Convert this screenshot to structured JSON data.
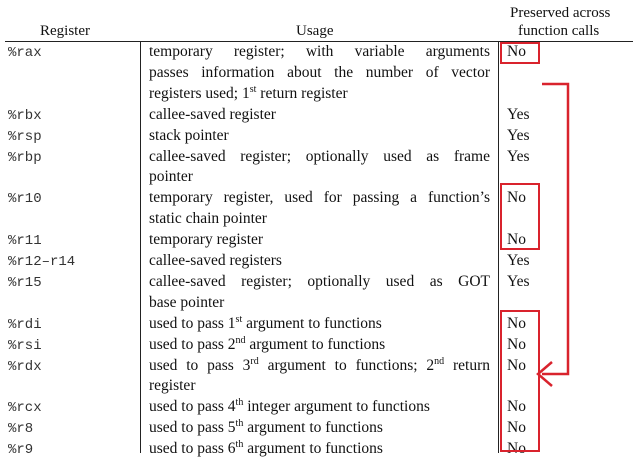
{
  "header": {
    "register": "Register",
    "usage": "Usage",
    "preserved_line1": "Preserved across",
    "preserved_line2": "function calls"
  },
  "rows": [
    {
      "register": "%rax",
      "usage_lines": [
        {
          "parts": [
            {
              "t": "temporary register;  with  variable  arguments"
            }
          ],
          "justify": true
        },
        {
          "parts": [
            {
              "t": "passes information about the number of vector"
            }
          ],
          "justify": true
        },
        {
          "parts": [
            {
              "t": "registers used; 1"
            },
            {
              "sup": "st"
            },
            {
              "t": " return register"
            }
          ]
        }
      ],
      "preserved": "No"
    },
    {
      "register": "%rbx",
      "usage_lines": [
        {
          "parts": [
            {
              "t": "callee-saved register"
            }
          ]
        }
      ],
      "preserved": "Yes"
    },
    {
      "register": "%rsp",
      "usage_lines": [
        {
          "parts": [
            {
              "t": "stack pointer"
            }
          ]
        }
      ],
      "preserved": "Yes"
    },
    {
      "register": "%rbp",
      "usage_lines": [
        {
          "parts": [
            {
              "t": "callee-saved register;  optionally used as frame"
            }
          ],
          "justify": true
        },
        {
          "parts": [
            {
              "t": "pointer"
            }
          ]
        }
      ],
      "preserved": "Yes"
    },
    {
      "register": "%r10",
      "usage_lines": [
        {
          "parts": [
            {
              "t": "temporary register, used for passing a function’s"
            }
          ],
          "justify": true
        },
        {
          "parts": [
            {
              "t": "static chain pointer"
            }
          ]
        }
      ],
      "preserved": "No"
    },
    {
      "register": "%r11",
      "usage_lines": [
        {
          "parts": [
            {
              "t": "temporary register"
            }
          ]
        }
      ],
      "preserved": "No"
    },
    {
      "register": "%r12–r14",
      "usage_lines": [
        {
          "parts": [
            {
              "t": "callee-saved registers"
            }
          ]
        }
      ],
      "preserved": "Yes"
    },
    {
      "register": "%r15",
      "usage_lines": [
        {
          "parts": [
            {
              "t": "callee-saved register;  optionally used as GOT"
            }
          ],
          "justify": true
        },
        {
          "parts": [
            {
              "t": "base pointer"
            }
          ]
        }
      ],
      "preserved": "Yes"
    },
    {
      "register": "%rdi",
      "usage_lines": [
        {
          "parts": [
            {
              "t": "used to pass 1"
            },
            {
              "sup": "st"
            },
            {
              "t": " argument to functions"
            }
          ]
        }
      ],
      "preserved": "No"
    },
    {
      "register": "%rsi",
      "usage_lines": [
        {
          "parts": [
            {
              "t": "used to pass 2"
            },
            {
              "sup": "nd"
            },
            {
              "t": " argument to functions"
            }
          ]
        }
      ],
      "preserved": "No"
    },
    {
      "register": "%rdx",
      "usage_lines": [
        {
          "parts": [
            {
              "t": "used to pass 3"
            },
            {
              "sup": "rd"
            },
            {
              "t": " argument to functions; 2"
            },
            {
              "sup": "nd"
            },
            {
              "t": " return"
            }
          ],
          "justify": true
        },
        {
          "parts": [
            {
              "t": "register"
            }
          ]
        }
      ],
      "preserved": "No"
    },
    {
      "register": "%rcx",
      "usage_lines": [
        {
          "parts": [
            {
              "t": "used to pass 4"
            },
            {
              "sup": "th"
            },
            {
              "t": " integer argument to functions"
            }
          ]
        }
      ],
      "preserved": "No"
    },
    {
      "register": "%r8",
      "usage_lines": [
        {
          "parts": [
            {
              "t": "used to pass 5"
            },
            {
              "sup": "th"
            },
            {
              "t": " argument to functions"
            }
          ]
        }
      ],
      "preserved": "No"
    },
    {
      "register": "%r9",
      "usage_lines": [
        {
          "parts": [
            {
              "t": "used to pass 6"
            },
            {
              "sup": "th"
            },
            {
              "t": " argument to functions"
            }
          ]
        }
      ],
      "preserved": "No"
    }
  ],
  "annotation_color": "#d9232d"
}
